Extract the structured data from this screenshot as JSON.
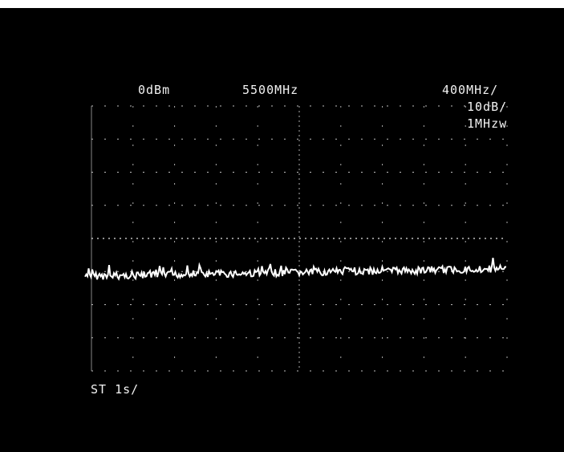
{
  "readouts": {
    "ref_level": "0dBm",
    "center_freq": "5500MHz",
    "span": "400MHz/",
    "scale": "10dB/",
    "rbw": "1MHzw",
    "sweep_time": "ST  1s/"
  },
  "colors": {
    "background": "#000000",
    "trace": "#ffffff",
    "text": "#f2f2f2",
    "graticule": "#bfbfbf"
  }
}
